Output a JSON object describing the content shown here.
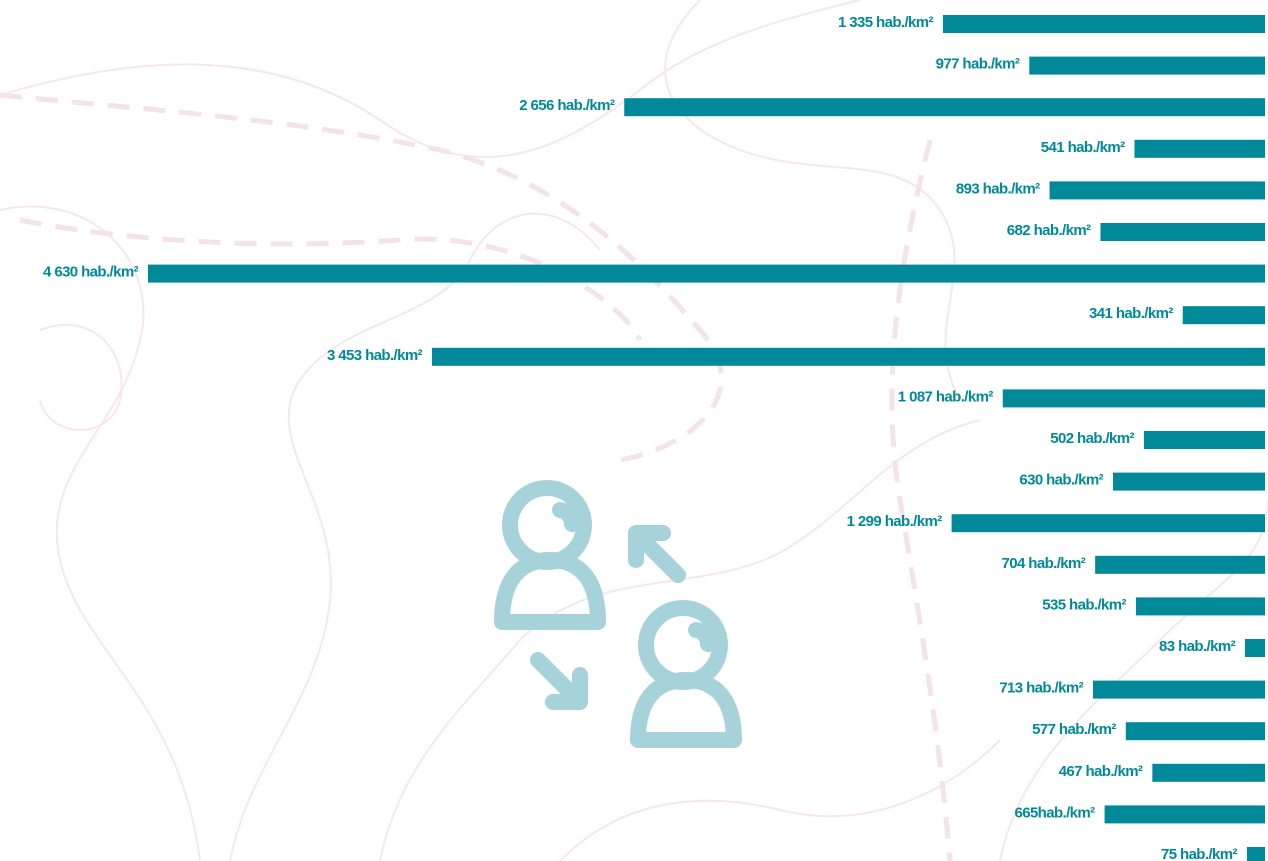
{
  "chart_data": {
    "type": "bar",
    "orientation": "horizontal",
    "color": "#008a99",
    "xlim": [
      0,
      4630
    ],
    "values": [
      1335,
      977,
      2656,
      541,
      893,
      682,
      4630,
      341,
      3453,
      1087,
      502,
      630,
      1299,
      704,
      535,
      83,
      713,
      577,
      467,
      665,
      75
    ],
    "value_labels": [
      "1 335 hab./km²",
      "977 hab./km²",
      "2 656 hab./km²",
      "541 hab./km²",
      "893 hab./km²",
      "682 hab./km²",
      "4 630 hab./km²",
      "341 hab./km²",
      "3 453 hab./km²",
      "1 087 hab./km²",
      "502 hab./km²",
      "630 hab./km²",
      "1 299 hab./km²",
      "704 hab./km²",
      "535 hab./km²",
      "83 hab./km²",
      "713 hab./km²",
      "577 hab./km²",
      "467 hab./km²",
      "665hab./km²",
      "75 hab./km²"
    ]
  }
}
